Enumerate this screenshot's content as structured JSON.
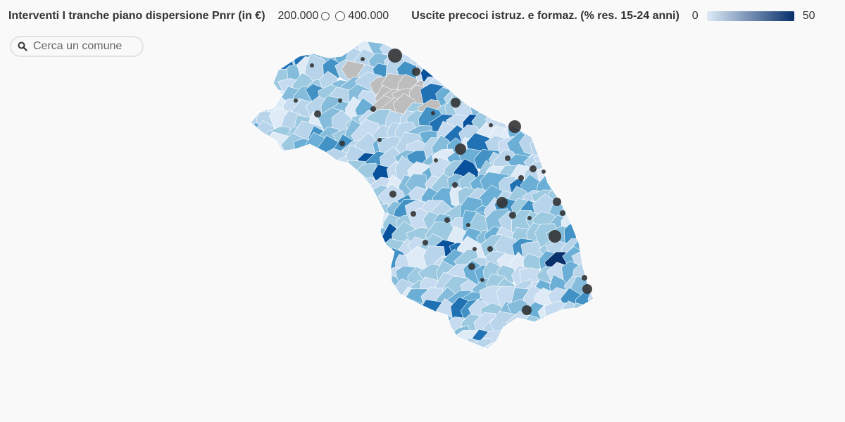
{
  "legend": {
    "size_title": "Interventi I tranche piano dispersione Pnrr (in €)",
    "size_min_label": "200.000",
    "size_max_label": "400.000",
    "color_title": "Uscite precoci istruz. e formaz. (% res. 15-24 anni)",
    "color_min_label": "0",
    "color_max_label": "50",
    "ramp_start_color": "#deebf7",
    "ramp_end_color": "#08306b",
    "no_data_color": "#bdbdbd"
  },
  "search": {
    "placeholder": "Cerca un comune",
    "icon": "search-icon"
  },
  "map": {
    "region": "Marche",
    "marker_color": "#333333"
  }
}
